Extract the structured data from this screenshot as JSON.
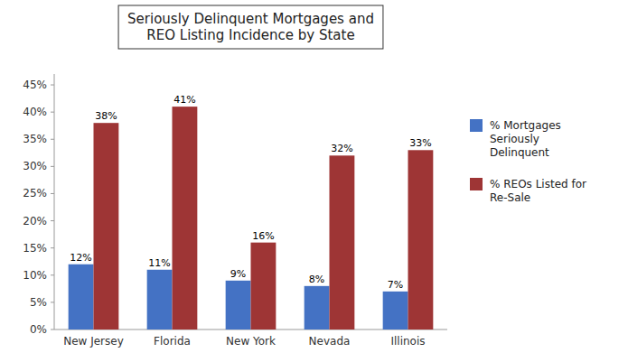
{
  "chart_data": {
    "type": "bar",
    "title": "Seriously Delinquent Mortgages and\nREO Listing Incidence by State",
    "categories": [
      "New Jersey",
      "Florida",
      "New York",
      "Nevada",
      "Illinois"
    ],
    "series": [
      {
        "name": "% Mortgages\nSeriously\nDelinquent",
        "color": "#4472C4",
        "values": [
          0.12,
          0.11,
          0.09,
          0.08,
          0.07
        ],
        "value_labels": [
          "12%",
          "11%",
          "9%",
          "8%",
          "7%"
        ]
      },
      {
        "name": "% REOs Listed for\nRe-Sale",
        "color": "#9E3535",
        "values": [
          0.38,
          0.41,
          0.16,
          0.32,
          0.33
        ],
        "value_labels": [
          "38%",
          "41%",
          "16%",
          "32%",
          "33%"
        ]
      }
    ],
    "ylim": [
      0,
      0.47
    ],
    "yticks": [
      {
        "value": 0.0,
        "label": "0%"
      },
      {
        "value": 0.05,
        "label": "5%"
      },
      {
        "value": 0.1,
        "label": "10%"
      },
      {
        "value": 0.15,
        "label": "15%"
      },
      {
        "value": 0.2,
        "label": "20%"
      },
      {
        "value": 0.25,
        "label": "25%"
      },
      {
        "value": 0.3,
        "label": "30%"
      },
      {
        "value": 0.35,
        "label": "35%"
      },
      {
        "value": 0.4,
        "label": "40%"
      },
      {
        "value": 0.45,
        "label": "45%"
      }
    ],
    "grid": false,
    "legend": "right",
    "data_labels": true
  }
}
